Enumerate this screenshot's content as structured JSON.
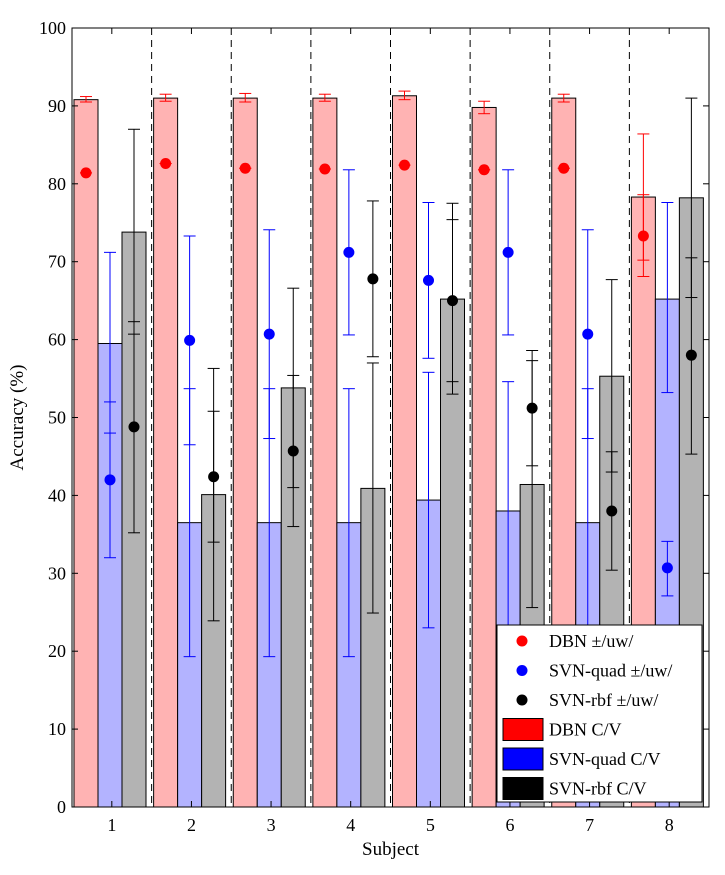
{
  "chart_data": {
    "type": "bar",
    "xlabel": "Subject",
    "ylabel": "Accuracy (%)",
    "ylim": [
      0,
      100
    ],
    "yticks": [
      0,
      10,
      20,
      30,
      40,
      50,
      60,
      70,
      80,
      90,
      100
    ],
    "categories": [
      "1",
      "2",
      "3",
      "4",
      "5",
      "6",
      "7",
      "8"
    ],
    "bar_series": [
      {
        "name": "DBN C/V",
        "color": "#ff0000",
        "fill": "#ffb3b3",
        "values": [
          90.8,
          91.0,
          91.0,
          91.0,
          91.3,
          89.8,
          91.0,
          78.3
        ],
        "err_low": [
          90.5,
          90.6,
          90.5,
          90.6,
          90.8,
          89.0,
          90.5,
          70.2
        ],
        "err_high": [
          91.2,
          91.5,
          91.6,
          91.5,
          91.9,
          90.6,
          91.5,
          86.4
        ]
      },
      {
        "name": "SVN-quad C/V",
        "color": "#0000ff",
        "fill": "#b3b3ff",
        "values": [
          59.5,
          36.5,
          36.5,
          36.5,
          39.4,
          38.0,
          36.5,
          65.2
        ],
        "err_low": [
          48.0,
          19.3,
          19.3,
          19.3,
          23.0,
          21.0,
          19.3,
          53.2
        ],
        "err_high": [
          71.2,
          53.7,
          53.7,
          53.7,
          55.8,
          54.6,
          53.7,
          77.6
        ]
      },
      {
        "name": "SVN-rbf C/V",
        "color": "#000000",
        "fill": "#b3b3b3",
        "values": [
          73.8,
          40.1,
          53.8,
          40.9,
          65.2,
          41.4,
          55.3,
          78.2
        ],
        "err_low": [
          60.7,
          23.9,
          41.0,
          24.9,
          53.0,
          25.6,
          43.0,
          65.4
        ],
        "err_high": [
          87.0,
          56.3,
          66.6,
          57.0,
          77.5,
          57.3,
          67.7,
          91.0
        ]
      }
    ],
    "point_series": [
      {
        "name": "DBN ±/uw/",
        "color": "#ff0000",
        "values": [
          81.4,
          82.6,
          82.0,
          81.9,
          82.4,
          81.8,
          82.0,
          73.3
        ],
        "err_low": [
          81.4,
          82.6,
          82.0,
          81.9,
          82.4,
          81.8,
          82.0,
          68.1
        ],
        "err_high": [
          81.4,
          82.6,
          82.0,
          81.9,
          82.4,
          81.8,
          82.0,
          78.6
        ]
      },
      {
        "name": "SVN-quad ±/uw/",
        "color": "#0000ff",
        "values": [
          42.0,
          59.9,
          60.7,
          71.2,
          67.6,
          71.2,
          60.7,
          30.7
        ],
        "err_low": [
          32.0,
          46.5,
          47.3,
          60.6,
          57.6,
          60.6,
          47.3,
          27.1
        ],
        "err_high": [
          52.0,
          73.3,
          74.1,
          81.8,
          77.6,
          81.8,
          74.1,
          34.1
        ]
      },
      {
        "name": "SVN-rbf ±/uw/",
        "color": "#000000",
        "values": [
          48.8,
          42.4,
          45.7,
          67.8,
          65.0,
          51.2,
          38.0,
          58.0
        ],
        "err_low": [
          35.2,
          34.0,
          36.0,
          57.8,
          54.6,
          43.8,
          30.4,
          45.3
        ],
        "err_high": [
          62.3,
          50.8,
          55.4,
          77.8,
          75.4,
          58.6,
          45.6,
          70.5
        ]
      }
    ],
    "legend_position": "bottom-right",
    "grid": false,
    "separators": "dashed vertical lines between subjects"
  }
}
